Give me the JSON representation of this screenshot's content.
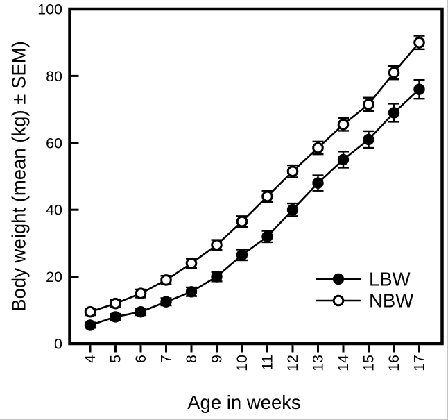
{
  "figure": {
    "background": "#ffffff",
    "foreground": "#000000",
    "edge_color": "#c4c4c4"
  },
  "chart_data": {
    "type": "line",
    "title": "",
    "xlabel": "Age in weeks",
    "ylabel": "Body weight (mean (kg) ± SEM)",
    "x": [
      4,
      5,
      6,
      7,
      8,
      9,
      10,
      11,
      12,
      13,
      14,
      15,
      16,
      17
    ],
    "xticklabels": [
      "4",
      "5",
      "6",
      "7",
      "8",
      "9",
      "10",
      "11",
      "12",
      "13",
      "14",
      "15",
      "16",
      "17"
    ],
    "yticks": [
      0,
      20,
      40,
      60,
      80,
      100
    ],
    "yticklabels": [
      "0",
      "20",
      "40",
      "60",
      "80",
      "100"
    ],
    "ylim": [
      0,
      100
    ],
    "grid": false,
    "frame": "full-box",
    "x_tick_label_rotation_deg": -90,
    "error_bar_type": "SEM",
    "background": "#ffffff",
    "series": [
      {
        "name": "LBW",
        "marker": "filled-circle",
        "color": "#000000",
        "values": [
          5.5,
          8,
          9.5,
          12.5,
          15.5,
          20,
          26.5,
          32,
          40,
          48,
          55,
          61,
          69,
          76
        ],
        "sem": [
          0.8,
          0.9,
          1.0,
          1.1,
          1.3,
          1.4,
          1.6,
          1.7,
          1.9,
          2.3,
          2.4,
          2.5,
          2.7,
          2.8
        ]
      },
      {
        "name": "NBW",
        "marker": "open-circle",
        "color": "#000000",
        "marker_fill": "#ffffff",
        "values": [
          9.5,
          12,
          15,
          19,
          24,
          29.5,
          36.5,
          44,
          51.5,
          58.5,
          65.5,
          71.5,
          81,
          90
        ],
        "sem": [
          1.0,
          1.1,
          1.2,
          1.3,
          1.4,
          1.5,
          1.6,
          1.7,
          1.8,
          1.9,
          1.9,
          2.0,
          2.0,
          2.0
        ]
      }
    ],
    "legend": {
      "position": "inside-lower-right",
      "entries": [
        {
          "label": "LBW",
          "marker": "filled-circle"
        },
        {
          "label": "NBW",
          "marker": "open-circle"
        }
      ]
    }
  }
}
